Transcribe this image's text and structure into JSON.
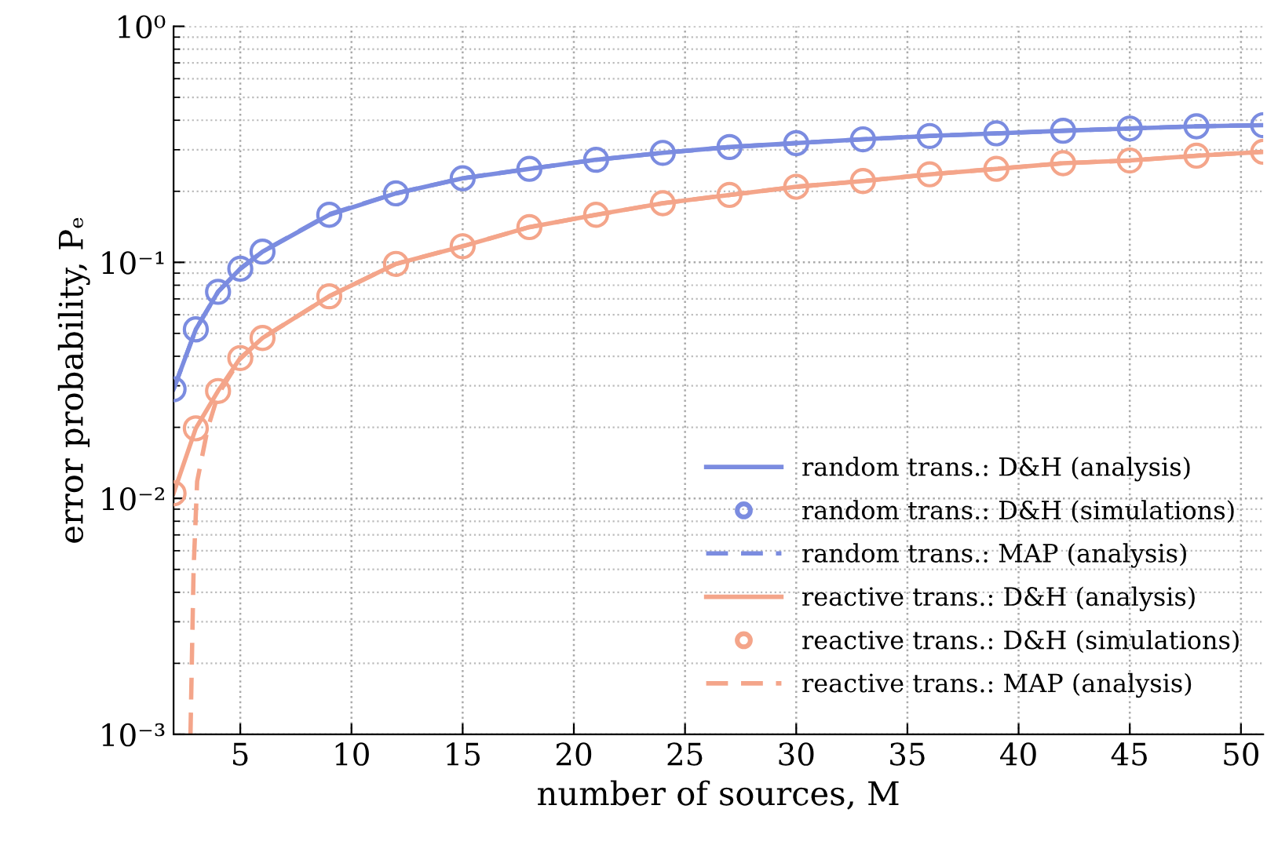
{
  "chart_data": {
    "type": "line",
    "xlabel": "number of sources, M",
    "ylabel": "error probability, Pₑ",
    "log": "y",
    "xlim": [
      2,
      51
    ],
    "xticks": [
      5,
      10,
      15,
      20,
      25,
      30,
      35,
      40,
      45,
      50
    ],
    "ylim": [
      0.001,
      1
    ],
    "yticks": [
      {
        "value": 0.001,
        "label": "10⁻³"
      },
      {
        "value": 0.01,
        "label": "10⁻²"
      },
      {
        "value": 0.1,
        "label": "10⁻¹"
      },
      {
        "value": 1,
        "label": "10⁰"
      }
    ],
    "grid": true,
    "legend": "lower right",
    "series": [
      {
        "name": "random trans.: D&H (analysis)",
        "line_style": "solid",
        "marker": "none",
        "color": "#7b8ce0",
        "x": [
          2,
          3,
          4,
          5,
          6,
          9,
          12,
          15,
          18,
          21,
          24,
          27,
          30,
          33,
          36,
          39,
          42,
          45,
          48,
          51
        ],
        "values": [
          0.029,
          0.052,
          0.075,
          0.094,
          0.111,
          0.159,
          0.196,
          0.227,
          0.249,
          0.272,
          0.291,
          0.308,
          0.32,
          0.332,
          0.343,
          0.352,
          0.361,
          0.369,
          0.377,
          0.381
        ]
      },
      {
        "name": "random trans.: D&H (simulations)",
        "type": "scatter",
        "marker": "circle",
        "color": "#7b8ce0",
        "x": [
          2,
          3,
          4,
          5,
          6,
          9,
          12,
          15,
          18,
          21,
          24,
          27,
          30,
          33,
          36,
          39,
          42,
          45,
          48,
          51
        ],
        "values": [
          0.029,
          0.052,
          0.075,
          0.094,
          0.111,
          0.159,
          0.196,
          0.227,
          0.249,
          0.272,
          0.291,
          0.308,
          0.32,
          0.332,
          0.343,
          0.352,
          0.361,
          0.369,
          0.377,
          0.381
        ]
      },
      {
        "name": "random trans.: MAP (analysis)",
        "line_style": "dashed",
        "marker": "none",
        "color": "#7b8ce0",
        "x": [
          2,
          3,
          4,
          5,
          6,
          9,
          12,
          15,
          18,
          21,
          24,
          27,
          30,
          33,
          36,
          39,
          42,
          45,
          48,
          51
        ],
        "values": [
          0.029,
          0.052,
          0.075,
          0.094,
          0.111,
          0.16,
          0.196,
          0.227,
          0.249,
          0.272,
          0.291,
          0.308,
          0.32,
          0.332,
          0.343,
          0.352,
          0.361,
          0.369,
          0.377,
          0.381
        ]
      },
      {
        "name": "reactive trans.: D&H (analysis)",
        "line_style": "solid",
        "marker": "none",
        "color": "#f4a58a",
        "x": [
          2,
          3,
          4,
          5,
          6,
          9,
          12,
          15,
          18,
          21,
          24,
          27,
          30,
          33,
          36,
          39,
          42,
          45,
          48,
          51
        ],
        "values": [
          0.0105,
          0.0198,
          0.0285,
          0.0393,
          0.0478,
          0.0718,
          0.0985,
          0.117,
          0.141,
          0.159,
          0.178,
          0.193,
          0.209,
          0.221,
          0.236,
          0.249,
          0.263,
          0.27,
          0.283,
          0.294
        ]
      },
      {
        "name": "reactive trans.: D&H (simulations)",
        "type": "scatter",
        "marker": "circle",
        "color": "#f4a58a",
        "x": [
          2,
          3,
          4,
          5,
          6,
          9,
          12,
          15,
          18,
          21,
          24,
          27,
          30,
          33,
          36,
          39,
          42,
          45,
          48,
          51
        ],
        "values": [
          0.0105,
          0.0198,
          0.0285,
          0.0393,
          0.0478,
          0.0718,
          0.0985,
          0.117,
          0.141,
          0.159,
          0.178,
          0.193,
          0.209,
          0.221,
          0.236,
          0.249,
          0.263,
          0.27,
          0.283,
          0.294
        ]
      },
      {
        "name": "reactive trans.: MAP (analysis)",
        "line_style": "dashed",
        "marker": "none",
        "color": "#f4a58a",
        "x": [
          2.76,
          2.9,
          3.06,
          3.53,
          4,
          5,
          6,
          9,
          12,
          15,
          18,
          21,
          24,
          27,
          30,
          33,
          36,
          39,
          42,
          45,
          48,
          51
        ],
        "values": [
          0.001,
          0.005,
          0.0118,
          0.0197,
          0.0275,
          0.039,
          0.0478,
          0.0718,
          0.0985,
          0.117,
          0.141,
          0.159,
          0.178,
          0.193,
          0.209,
          0.221,
          0.236,
          0.249,
          0.263,
          0.27,
          0.283,
          0.294
        ]
      }
    ]
  }
}
